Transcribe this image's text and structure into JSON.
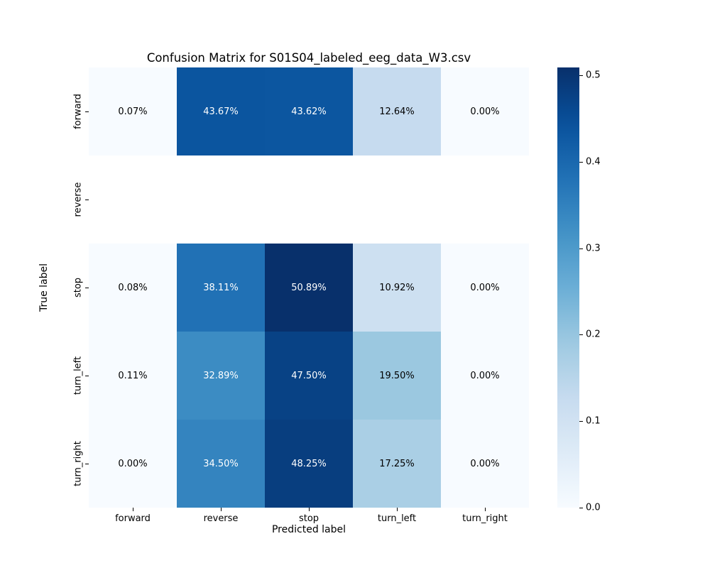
{
  "chart_data": {
    "type": "heatmap",
    "title": "Confusion Matrix for S01S04_labeled_eeg_data_W3.csv",
    "xlabel": "Predicted label",
    "ylabel": "True label",
    "x_categories": [
      "forward",
      "reverse",
      "stop",
      "turn_left",
      "turn_right"
    ],
    "y_categories": [
      "forward",
      "reverse",
      "stop",
      "turn_left",
      "turn_right"
    ],
    "values": [
      [
        0.0007,
        0.4367,
        0.4362,
        0.1264,
        0.0
      ],
      [
        null,
        null,
        null,
        null,
        null
      ],
      [
        0.0008,
        0.3811,
        0.5089,
        0.1092,
        0.0
      ],
      [
        0.0011,
        0.3289,
        0.475,
        0.195,
        0.0
      ],
      [
        0.0,
        0.345,
        0.4825,
        0.1725,
        0.0
      ]
    ],
    "labels": [
      [
        "0.07%",
        "43.67%",
        "43.62%",
        "12.64%",
        "0.00%"
      ],
      [
        null,
        null,
        null,
        null,
        null
      ],
      [
        "0.08%",
        "38.11%",
        "50.89%",
        "10.92%",
        "0.00%"
      ],
      [
        "0.11%",
        "32.89%",
        "47.50%",
        "19.50%",
        "0.00%"
      ],
      [
        "0.00%",
        "34.50%",
        "48.25%",
        "17.25%",
        "0.00%"
      ]
    ],
    "colormap": "Blues",
    "colorbar": {
      "min": 0.0,
      "max": 0.5089,
      "ticks": [
        0.0,
        0.1,
        0.2,
        0.3,
        0.4,
        0.5
      ]
    },
    "grid": false,
    "legend_position": "colorbar-right"
  }
}
